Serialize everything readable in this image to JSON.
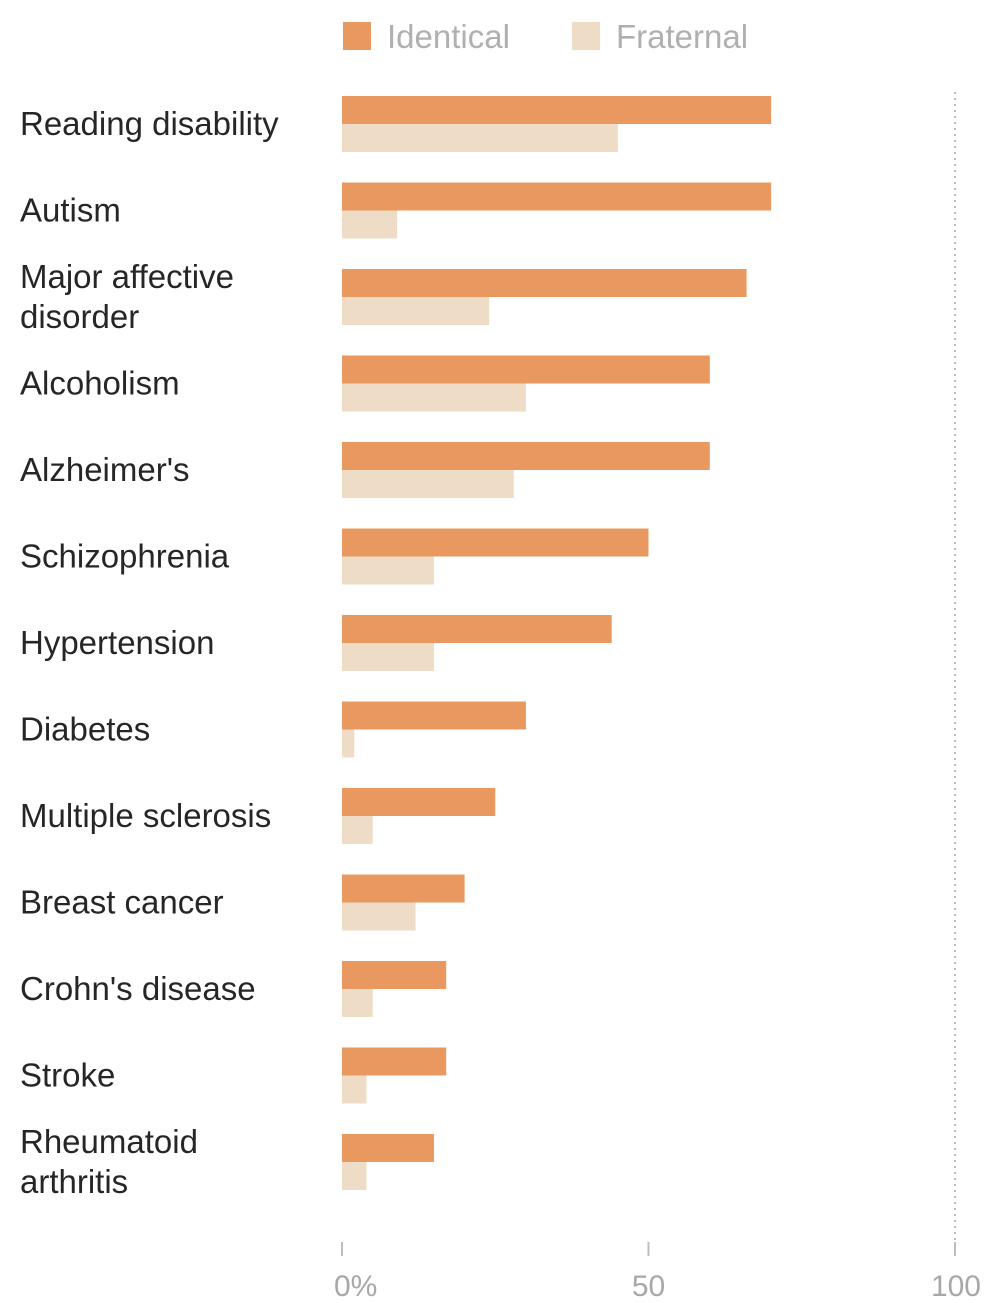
{
  "chart_data": {
    "type": "bar",
    "orientation": "horizontal",
    "categories": [
      [
        "Reading disability"
      ],
      [
        "Autism"
      ],
      [
        "Major affective",
        "disorder"
      ],
      [
        "Alcoholism"
      ],
      [
        "Alzheimer's"
      ],
      [
        "Schizophrenia"
      ],
      [
        "Hypertension"
      ],
      [
        "Diabetes"
      ],
      [
        "Multiple sclerosis"
      ],
      [
        "Breast cancer"
      ],
      [
        "Crohn's disease"
      ],
      [
        "Stroke"
      ],
      [
        "Rheumatoid",
        "arthritis"
      ]
    ],
    "series": [
      {
        "name": "Identical",
        "color": "#e9995f",
        "values": [
          70,
          70,
          66,
          60,
          60,
          50,
          44,
          30,
          25,
          20,
          17,
          17,
          15
        ]
      },
      {
        "name": "Fraternal",
        "color": "#efdcc6",
        "values": [
          45,
          9,
          24,
          30,
          28,
          15,
          15,
          2,
          5,
          12,
          5,
          4,
          4
        ]
      }
    ],
    "xlim": [
      0,
      100
    ],
    "ticks": [
      {
        "value": 0,
        "label": "0%"
      },
      {
        "value": 50,
        "label": "50"
      },
      {
        "value": 100,
        "label": "100"
      }
    ],
    "reference_line": 100,
    "legend_position": "top",
    "grid": false
  }
}
